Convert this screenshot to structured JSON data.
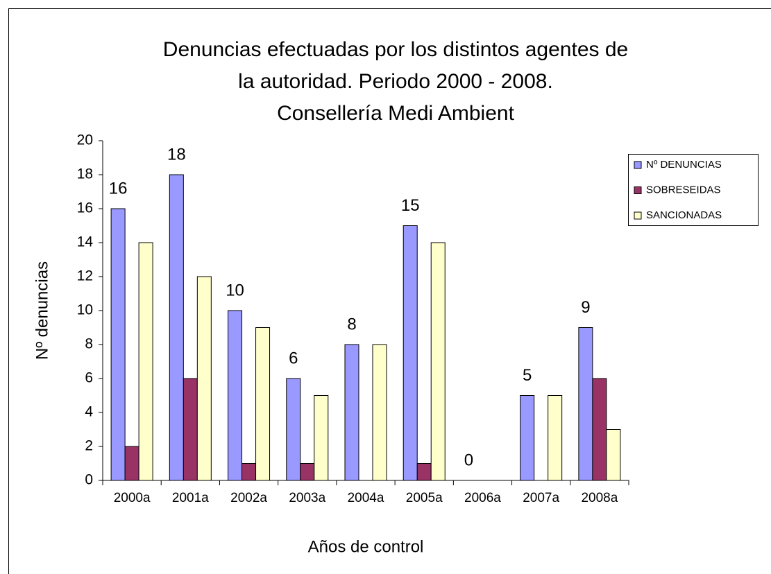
{
  "chart_data": {
    "type": "bar",
    "title": [
      "Denuncias efectuadas por los distintos agentes de",
      "la autoridad. Periodo 2000 - 2008.",
      "Consellería Medi Ambient"
    ],
    "y_label": "Nº denuncias",
    "x_label": "Años de control",
    "categories": [
      "2000a",
      "2001a",
      "2002a",
      "2003a",
      "2004a",
      "2005a",
      "2006a",
      "2007a",
      "2008a"
    ],
    "series": [
      {
        "name": "Nº DENUNCIAS",
        "color": "#9999ff",
        "values": [
          16,
          18,
          10,
          6,
          8,
          15,
          0,
          5,
          9
        ],
        "data_labels": true
      },
      {
        "name": "SOBRESEIDAS",
        "color": "#993366",
        "values": [
          2,
          6,
          1,
          1,
          0,
          1,
          0,
          0,
          6
        ],
        "data_labels": false
      },
      {
        "name": "SANCIONADAS",
        "color": "#ffffcc",
        "values": [
          14,
          12,
          9,
          5,
          8,
          14,
          0,
          5,
          3
        ],
        "data_labels": false
      }
    ],
    "ylim": [
      0,
      20
    ],
    "yticks": [
      0,
      2,
      4,
      6,
      8,
      10,
      12,
      14,
      16,
      18,
      20
    ],
    "grid": false,
    "legend": "right"
  }
}
